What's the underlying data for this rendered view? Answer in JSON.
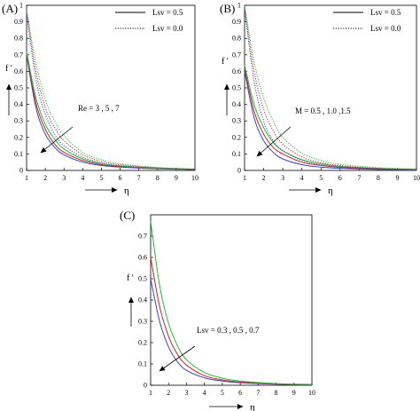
{
  "chart_data": [
    {
      "panel_label": "(A)",
      "type": "line",
      "ylabel": "f '",
      "xlabel": "η",
      "xlim": [
        1,
        10
      ],
      "ylim": [
        0,
        1
      ],
      "xticks": [
        "1",
        "2",
        "3",
        "4",
        "5",
        "6",
        "7",
        "8",
        "9",
        "10"
      ],
      "yticks": [
        "0",
        "0.1",
        "0.2",
        "0.3",
        "0.4",
        "0.5",
        "0.6",
        "0.7",
        "0.8",
        "0.9",
        "1"
      ],
      "legend": {
        "placement": "top-right",
        "entries": [
          {
            "label": "Lsv = 0.5",
            "style": "solid"
          },
          {
            "label": "Lsv = 0.0",
            "style": "dotted"
          }
        ]
      },
      "annotation": "Re = 3 , 5 , 7",
      "grid": false,
      "series": [
        {
          "color": "#3344cc",
          "style": "solid",
          "x": [
            1,
            1.5,
            2,
            2.5,
            3,
            4,
            5,
            6,
            8,
            10
          ],
          "y": [
            0.7,
            0.38,
            0.22,
            0.14,
            0.095,
            0.05,
            0.03,
            0.02,
            0.01,
            0.005
          ]
        },
        {
          "color": "#cc2222",
          "style": "solid",
          "x": [
            1,
            1.5,
            2,
            2.5,
            3,
            4,
            5,
            6,
            8,
            10
          ],
          "y": [
            0.71,
            0.41,
            0.25,
            0.16,
            0.11,
            0.06,
            0.035,
            0.023,
            0.012,
            0.006
          ]
        },
        {
          "color": "#22bb33",
          "style": "solid",
          "x": [
            1,
            1.5,
            2,
            2.5,
            3,
            4,
            5,
            6,
            8,
            10
          ],
          "y": [
            0.72,
            0.44,
            0.28,
            0.19,
            0.13,
            0.07,
            0.042,
            0.027,
            0.013,
            0.007
          ]
        },
        {
          "color": "#3344cc",
          "style": "dotted",
          "x": [
            1,
            1.5,
            2,
            2.5,
            3,
            4,
            5,
            6,
            8,
            10
          ],
          "y": [
            0.95,
            0.55,
            0.34,
            0.22,
            0.15,
            0.08,
            0.045,
            0.028,
            0.014,
            0.007
          ]
        },
        {
          "color": "#cc2222",
          "style": "dotted",
          "x": [
            1,
            1.5,
            2,
            2.5,
            3,
            4,
            5,
            6,
            8,
            10
          ],
          "y": [
            0.96,
            0.6,
            0.38,
            0.26,
            0.18,
            0.095,
            0.055,
            0.034,
            0.016,
            0.008
          ]
        },
        {
          "color": "#22bb33",
          "style": "dotted",
          "x": [
            1,
            1.5,
            2,
            2.5,
            3,
            4,
            5,
            6,
            8,
            10
          ],
          "y": [
            0.97,
            0.65,
            0.43,
            0.3,
            0.21,
            0.11,
            0.065,
            0.04,
            0.018,
            0.009
          ]
        }
      ]
    },
    {
      "panel_label": "(B)",
      "type": "line",
      "ylabel": "f '",
      "xlabel": "η",
      "xlim": [
        1,
        10
      ],
      "ylim": [
        0,
        1
      ],
      "xticks": [
        "1",
        "2",
        "3",
        "4",
        "5",
        "6",
        "7",
        "8",
        "9",
        "10"
      ],
      "yticks": [
        "0",
        "0.1",
        "0.2",
        "0.3",
        "0.4",
        "0.5",
        "0.6",
        "0.7",
        "0.8",
        "0.9",
        "1"
      ],
      "legend": {
        "placement": "top-right",
        "entries": [
          {
            "label": "Lsv = 0.5",
            "style": "solid"
          },
          {
            "label": "Lsv = 0.0",
            "style": "dotted"
          }
        ]
      },
      "annotation": "M = 0.5 , 1.0 ,1.5",
      "grid": false,
      "series": [
        {
          "color": "#3344cc",
          "style": "solid",
          "x": [
            1,
            1.5,
            2,
            2.5,
            3,
            4,
            5,
            6,
            8,
            10
          ],
          "y": [
            0.6,
            0.32,
            0.18,
            0.11,
            0.07,
            0.035,
            0.02,
            0.013,
            0.006,
            0.003
          ]
        },
        {
          "color": "#cc2222",
          "style": "solid",
          "x": [
            1,
            1.5,
            2,
            2.5,
            3,
            4,
            5,
            6,
            8,
            10
          ],
          "y": [
            0.62,
            0.36,
            0.22,
            0.14,
            0.1,
            0.05,
            0.03,
            0.019,
            0.009,
            0.005
          ]
        },
        {
          "color": "#22bb33",
          "style": "solid",
          "x": [
            1,
            1.5,
            2,
            2.5,
            3,
            4,
            5,
            6,
            8,
            10
          ],
          "y": [
            0.64,
            0.4,
            0.26,
            0.17,
            0.12,
            0.065,
            0.04,
            0.025,
            0.012,
            0.006
          ]
        },
        {
          "color": "#3344cc",
          "style": "dotted",
          "x": [
            1,
            1.5,
            2,
            2.5,
            3,
            4,
            5,
            6,
            8,
            10
          ],
          "y": [
            0.98,
            0.54,
            0.3,
            0.18,
            0.12,
            0.06,
            0.034,
            0.021,
            0.01,
            0.005
          ]
        },
        {
          "color": "#cc2222",
          "style": "dotted",
          "x": [
            1,
            1.5,
            2,
            2.5,
            3,
            4,
            5,
            6,
            8,
            10
          ],
          "y": [
            0.99,
            0.6,
            0.37,
            0.24,
            0.16,
            0.082,
            0.047,
            0.029,
            0.013,
            0.007
          ]
        },
        {
          "color": "#22bb33",
          "style": "dotted",
          "x": [
            1,
            1.5,
            2,
            2.5,
            3,
            4,
            5,
            6,
            8,
            10
          ],
          "y": [
            1.0,
            0.66,
            0.44,
            0.3,
            0.2,
            0.105,
            0.06,
            0.037,
            0.017,
            0.009
          ]
        }
      ]
    },
    {
      "panel_label": "(C)",
      "type": "line",
      "ylabel": "f '",
      "xlabel": "η",
      "xlim": [
        1,
        10
      ],
      "ylim": [
        0,
        0.8
      ],
      "xticks": [
        "1",
        "2",
        "3",
        "4",
        "5",
        "6",
        "7",
        "8",
        "9",
        "10"
      ],
      "yticks": [
        "0",
        "0.1",
        "0.2",
        "0.3",
        "0.4",
        "0.5",
        "0.6",
        "0.7"
      ],
      "annotation": "Lsv = 0.3 , 0.5 , 0.7",
      "grid": false,
      "series": [
        {
          "color": "#3344cc",
          "style": "solid",
          "x": [
            1,
            1.5,
            2,
            2.5,
            3,
            4,
            5,
            6,
            8,
            10
          ],
          "y": [
            0.5,
            0.3,
            0.18,
            0.11,
            0.07,
            0.035,
            0.02,
            0.012,
            0.005,
            0.002
          ]
        },
        {
          "color": "#cc2222",
          "style": "solid",
          "x": [
            1,
            1.5,
            2,
            2.5,
            3,
            4,
            5,
            6,
            8,
            10
          ],
          "y": [
            0.6,
            0.37,
            0.23,
            0.145,
            0.095,
            0.045,
            0.025,
            0.015,
            0.006,
            0.003
          ]
        },
        {
          "color": "#22bb33",
          "style": "solid",
          "x": [
            1,
            1.5,
            2,
            2.5,
            3,
            4,
            5,
            6,
            8,
            10
          ],
          "y": [
            0.77,
            0.47,
            0.29,
            0.185,
            0.12,
            0.06,
            0.033,
            0.02,
            0.008,
            0.004
          ]
        }
      ]
    }
  ]
}
